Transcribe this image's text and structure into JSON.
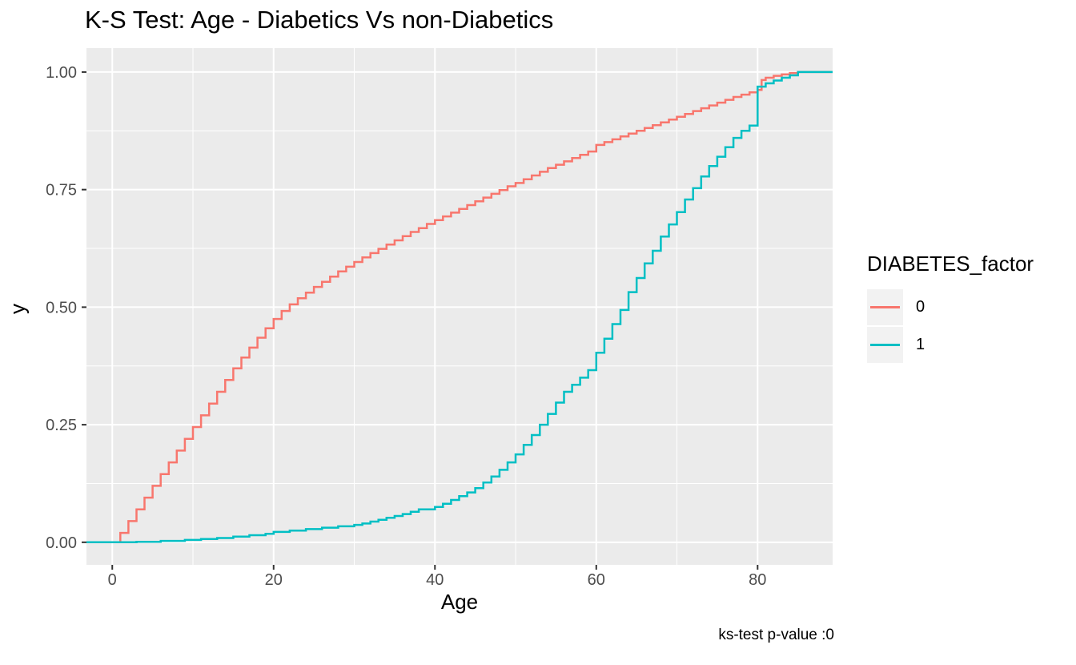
{
  "title": "K-S Test: Age - Diabetics Vs non-Diabetics",
  "caption": "ks-test p-value :0",
  "legend": {
    "title": "DIABETES_factor",
    "items": [
      {
        "label": "0",
        "color": "#F8766D"
      },
      {
        "label": "1",
        "color": "#00BFC4"
      }
    ]
  },
  "colors": {
    "panel_background": "#EBEBEB",
    "gridline": "#FFFFFF",
    "tick_mark": "#333333",
    "tick_label": "#4D4D4D",
    "legend_key_background": "#F2F2F2",
    "series_0": "#F8766D",
    "series_1": "#00BFC4"
  },
  "chart_data": {
    "type": "line",
    "subtype": "ecdf-step",
    "title": "K-S Test: Age - Diabetics Vs non-Diabetics",
    "xlabel": "Age",
    "ylabel": "y",
    "caption": "ks-test p-value :0",
    "legend_title": "DIABETES_factor",
    "legend_position": "right",
    "grid": "on",
    "x_range": [
      -3.2,
      89.3
    ],
    "y_range": [
      -0.048,
      1.051
    ],
    "x_ticks": [
      0,
      20,
      40,
      60,
      80
    ],
    "x_tick_labels": [
      "0",
      "20",
      "40",
      "60",
      "80"
    ],
    "x_minor_ticks": [
      10,
      30,
      50,
      70
    ],
    "y_ticks": [
      0,
      0.25,
      0.5,
      0.75,
      1
    ],
    "y_tick_labels": [
      "0.00",
      "0.25",
      "0.50",
      "0.75",
      "1.00"
    ],
    "y_minor_ticks": [
      0.125,
      0.375,
      0.625,
      0.875
    ],
    "series": [
      {
        "name": "0",
        "color": "#F8766D",
        "points": [
          [
            1,
            0.02
          ],
          [
            2,
            0.045
          ],
          [
            3,
            0.07
          ],
          [
            4,
            0.095
          ],
          [
            5,
            0.12
          ],
          [
            6,
            0.145
          ],
          [
            7,
            0.17
          ],
          [
            8,
            0.195
          ],
          [
            9,
            0.22
          ],
          [
            10,
            0.245
          ],
          [
            11,
            0.27
          ],
          [
            12,
            0.295
          ],
          [
            13,
            0.32
          ],
          [
            14,
            0.345
          ],
          [
            15,
            0.37
          ],
          [
            16,
            0.393
          ],
          [
            17,
            0.414
          ],
          [
            18,
            0.435
          ],
          [
            19,
            0.455
          ],
          [
            20,
            0.475
          ],
          [
            21,
            0.492
          ],
          [
            22,
            0.506
          ],
          [
            23,
            0.519
          ],
          [
            24,
            0.531
          ],
          [
            25,
            0.543
          ],
          [
            26,
            0.554
          ],
          [
            27,
            0.565
          ],
          [
            28,
            0.576
          ],
          [
            29,
            0.586
          ],
          [
            30,
            0.596
          ],
          [
            31,
            0.606
          ],
          [
            32,
            0.615
          ],
          [
            33,
            0.624
          ],
          [
            34,
            0.633
          ],
          [
            35,
            0.642
          ],
          [
            36,
            0.651
          ],
          [
            37,
            0.66
          ],
          [
            38,
            0.668
          ],
          [
            39,
            0.677
          ],
          [
            40,
            0.685
          ],
          [
            41,
            0.693
          ],
          [
            42,
            0.701
          ],
          [
            43,
            0.709
          ],
          [
            44,
            0.717
          ],
          [
            45,
            0.725
          ],
          [
            46,
            0.733
          ],
          [
            47,
            0.741
          ],
          [
            48,
            0.749
          ],
          [
            49,
            0.757
          ],
          [
            50,
            0.764
          ],
          [
            51,
            0.772
          ],
          [
            52,
            0.78
          ],
          [
            53,
            0.788
          ],
          [
            54,
            0.796
          ],
          [
            55,
            0.803
          ],
          [
            56,
            0.81
          ],
          [
            57,
            0.817
          ],
          [
            58,
            0.824
          ],
          [
            59,
            0.831
          ],
          [
            60,
            0.845
          ],
          [
            61,
            0.851
          ],
          [
            62,
            0.857
          ],
          [
            63,
            0.863
          ],
          [
            64,
            0.869
          ],
          [
            65,
            0.875
          ],
          [
            66,
            0.881
          ],
          [
            67,
            0.887
          ],
          [
            68,
            0.893
          ],
          [
            69,
            0.899
          ],
          [
            70,
            0.905
          ],
          [
            71,
            0.911
          ],
          [
            72,
            0.917
          ],
          [
            73,
            0.923
          ],
          [
            74,
            0.929
          ],
          [
            75,
            0.935
          ],
          [
            76,
            0.941
          ],
          [
            77,
            0.947
          ],
          [
            78,
            0.952
          ],
          [
            79,
            0.957
          ],
          [
            80,
            0.962
          ],
          [
            80.5,
            0.983
          ],
          [
            81,
            0.988
          ],
          [
            82,
            0.992
          ],
          [
            83,
            0.995
          ],
          [
            84,
            0.998
          ],
          [
            85,
            1.0
          ]
        ]
      },
      {
        "name": "1",
        "color": "#00BFC4",
        "points": [
          [
            3,
            0.001
          ],
          [
            6,
            0.003
          ],
          [
            9,
            0.005
          ],
          [
            11,
            0.007
          ],
          [
            13,
            0.009
          ],
          [
            15,
            0.012
          ],
          [
            17,
            0.015
          ],
          [
            19,
            0.018
          ],
          [
            20,
            0.022
          ],
          [
            22,
            0.025
          ],
          [
            24,
            0.028
          ],
          [
            26,
            0.031
          ],
          [
            28,
            0.034
          ],
          [
            30,
            0.037
          ],
          [
            31,
            0.04
          ],
          [
            32,
            0.044
          ],
          [
            33,
            0.048
          ],
          [
            34,
            0.052
          ],
          [
            35,
            0.056
          ],
          [
            36,
            0.06
          ],
          [
            37,
            0.065
          ],
          [
            38,
            0.07
          ],
          [
            40,
            0.075
          ],
          [
            41,
            0.082
          ],
          [
            42,
            0.09
          ],
          [
            43,
            0.098
          ],
          [
            44,
            0.106
          ],
          [
            45,
            0.115
          ],
          [
            46,
            0.127
          ],
          [
            47,
            0.14
          ],
          [
            48,
            0.154
          ],
          [
            49,
            0.17
          ],
          [
            50,
            0.187
          ],
          [
            51,
            0.207
          ],
          [
            52,
            0.228
          ],
          [
            53,
            0.25
          ],
          [
            54,
            0.273
          ],
          [
            55,
            0.297
          ],
          [
            56,
            0.32
          ],
          [
            57,
            0.335
          ],
          [
            58,
            0.35
          ],
          [
            59,
            0.366
          ],
          [
            60,
            0.403
          ],
          [
            61,
            0.433
          ],
          [
            62,
            0.464
          ],
          [
            63,
            0.494
          ],
          [
            64,
            0.532
          ],
          [
            65,
            0.562
          ],
          [
            66,
            0.593
          ],
          [
            67,
            0.62
          ],
          [
            68,
            0.65
          ],
          [
            69,
            0.676
          ],
          [
            70,
            0.702
          ],
          [
            71,
            0.729
          ],
          [
            72,
            0.753
          ],
          [
            73,
            0.778
          ],
          [
            74,
            0.8
          ],
          [
            75,
            0.82
          ],
          [
            76,
            0.84
          ],
          [
            77,
            0.86
          ],
          [
            78,
            0.875
          ],
          [
            79,
            0.886
          ],
          [
            80,
            0.969
          ],
          [
            81,
            0.976
          ],
          [
            82,
            0.982
          ],
          [
            83,
            0.988
          ],
          [
            84,
            0.993
          ],
          [
            85,
            1.0
          ]
        ]
      }
    ]
  }
}
